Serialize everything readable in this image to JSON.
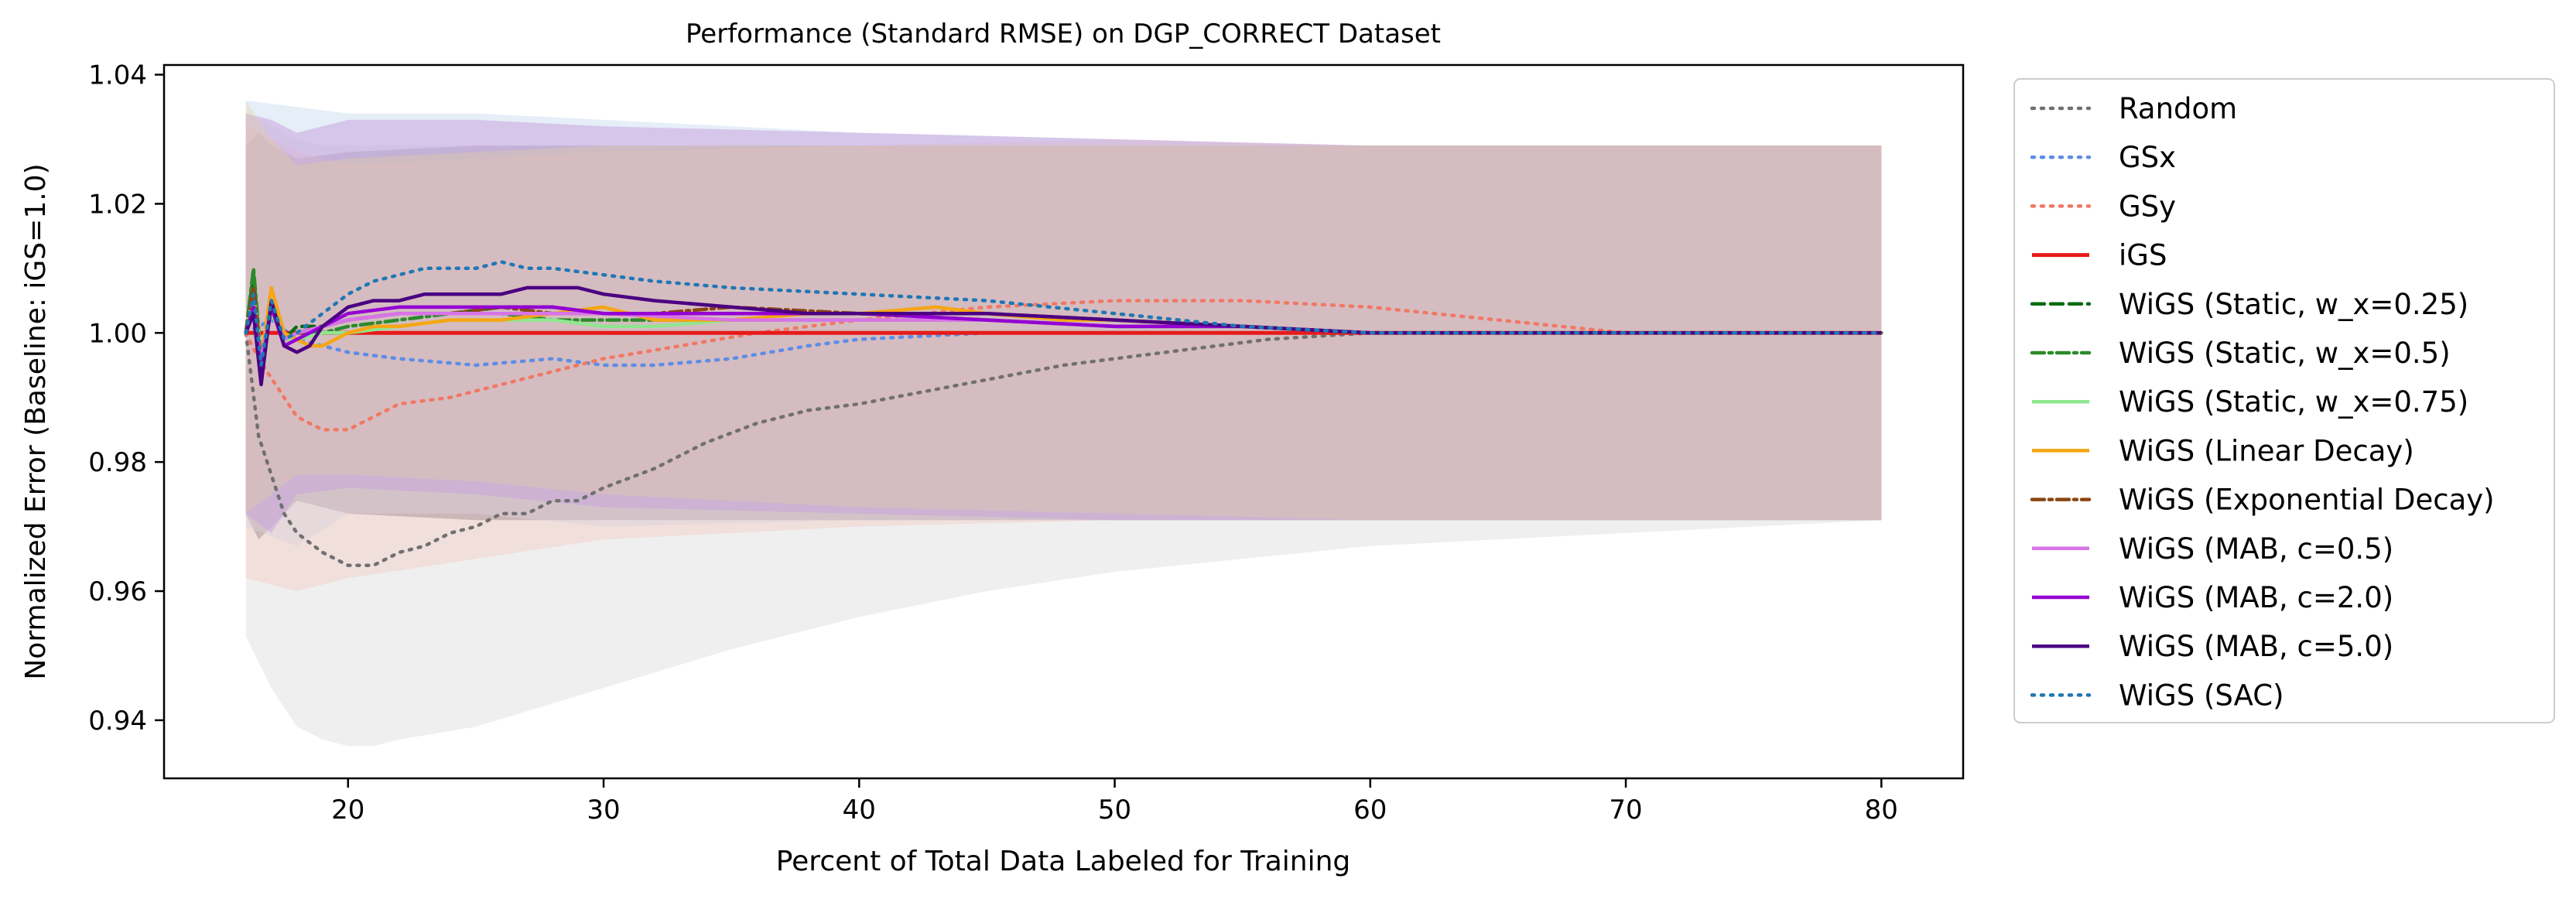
{
  "chart_data": {
    "type": "line",
    "title": "Performance (Standard RMSE) on DGP_CORRECT Dataset",
    "xlabel": "Percent of Total Data Labeled for Training",
    "ylabel": "Normalized Error (Baseline: iGS=1.0)",
    "xlim": [
      12.8,
      83.2
    ],
    "ylim": [
      0.931,
      1.0415
    ],
    "xticks": [
      20,
      30,
      40,
      50,
      60,
      70,
      80
    ],
    "yticks": [
      0.94,
      0.96,
      0.98,
      1.0,
      1.02,
      1.04
    ],
    "xtick_labels": [
      "20",
      "30",
      "40",
      "50",
      "60",
      "70",
      "80"
    ],
    "ytick_labels": [
      "0.94",
      "0.96",
      "0.98",
      "1.00",
      "1.02",
      "1.04"
    ],
    "grid": false,
    "legend_position": "outside-right",
    "bands": [
      {
        "color": "#9a8a9a",
        "opacity": 0.9,
        "x": [
          16,
          16.5,
          17,
          18,
          20,
          25,
          30,
          40,
          50,
          60,
          70,
          80
        ],
        "upper": [
          1.029,
          1.031,
          1.029,
          1.027,
          1.028,
          1.029,
          1.029,
          1.029,
          1.029,
          1.029,
          1.029,
          1.029
        ],
        "lower": [
          0.972,
          0.968,
          0.97,
          0.974,
          0.972,
          0.971,
          0.971,
          0.971,
          0.971,
          0.971,
          0.971,
          0.971
        ]
      },
      {
        "color": "#d0d0d0",
        "opacity": 0.35,
        "x": [
          16,
          17,
          18,
          19,
          20,
          21,
          22,
          25,
          30,
          35,
          40,
          45,
          50,
          55,
          60,
          65,
          70,
          75,
          80
        ],
        "upper": [
          1.034,
          1.032,
          1.03,
          1.029,
          1.029,
          1.029,
          1.029,
          1.029,
          1.029,
          1.029,
          1.029,
          1.029,
          1.029,
          1.029,
          1.029,
          1.029,
          1.029,
          1.029,
          1.029
        ],
        "lower": [
          0.953,
          0.945,
          0.939,
          0.937,
          0.936,
          0.936,
          0.937,
          0.939,
          0.945,
          0.951,
          0.956,
          0.96,
          0.963,
          0.965,
          0.967,
          0.968,
          0.969,
          0.97,
          0.971
        ]
      },
      {
        "color": "#c8daf0",
        "opacity": 0.45,
        "x": [
          16,
          18,
          20,
          25,
          30,
          40,
          50,
          60,
          70,
          80
        ],
        "upper": [
          1.036,
          1.035,
          1.034,
          1.034,
          1.033,
          1.031,
          1.03,
          1.029,
          1.029,
          1.029
        ],
        "lower": [
          0.97,
          0.967,
          0.972,
          0.972,
          0.97,
          0.971,
          0.971,
          0.971,
          0.971,
          0.971
        ]
      },
      {
        "color": "#f5c8c0",
        "opacity": 0.4,
        "x": [
          16,
          18,
          20,
          25,
          30,
          40,
          50,
          60,
          70,
          80
        ],
        "upper": [
          1.032,
          1.028,
          1.026,
          1.027,
          1.028,
          1.029,
          1.03,
          1.029,
          1.029,
          1.029
        ],
        "lower": [
          0.962,
          0.96,
          0.962,
          0.965,
          0.968,
          0.97,
          0.971,
          0.971,
          0.971,
          0.971
        ]
      },
      {
        "color": "#c9a6de",
        "opacity": 0.55,
        "x": [
          16,
          17,
          18,
          20,
          25,
          30,
          40,
          50,
          60,
          70,
          80
        ],
        "upper": [
          1.034,
          1.033,
          1.031,
          1.033,
          1.033,
          1.032,
          1.031,
          1.03,
          1.029,
          1.029,
          1.029
        ],
        "lower": [
          0.972,
          0.969,
          0.975,
          0.976,
          0.975,
          0.973,
          0.972,
          0.971,
          0.971,
          0.971,
          0.971
        ]
      },
      {
        "color": "#e6cf9c",
        "opacity": 0.35,
        "x": [
          16,
          17,
          18,
          20,
          25,
          30,
          40,
          50,
          60,
          70,
          80
        ],
        "upper": [
          1.036,
          1.03,
          1.026,
          1.027,
          1.028,
          1.029,
          1.029,
          1.029,
          1.029,
          1.029,
          1.029
        ],
        "lower": [
          0.972,
          0.975,
          0.978,
          0.978,
          0.977,
          0.975,
          0.973,
          0.972,
          0.971,
          0.971,
          0.971
        ]
      }
    ],
    "series": [
      {
        "name": "Random",
        "color": "#707070",
        "dash": "dotted",
        "x": [
          16,
          16.5,
          17,
          17.5,
          18,
          19,
          20,
          21,
          22,
          23,
          24,
          25,
          26,
          27,
          28,
          29,
          30,
          32,
          34,
          36,
          38,
          40,
          44,
          48,
          52,
          56,
          60,
          65,
          70,
          75,
          80
        ],
        "y": [
          1.0,
          0.984,
          0.978,
          0.972,
          0.969,
          0.966,
          0.964,
          0.964,
          0.966,
          0.967,
          0.969,
          0.97,
          0.972,
          0.972,
          0.974,
          0.974,
          0.976,
          0.979,
          0.983,
          0.986,
          0.988,
          0.989,
          0.992,
          0.995,
          0.997,
          0.999,
          1.0,
          1.0,
          1.0,
          1.0,
          1.0
        ]
      },
      {
        "name": "GSx",
        "color": "#5b8de6",
        "dash": "dotted",
        "x": [
          16,
          17,
          18,
          20,
          22,
          25,
          28,
          30,
          32,
          35,
          38,
          40,
          45,
          50,
          55,
          60,
          70,
          80
        ],
        "y": [
          1.0,
          1.002,
          0.999,
          0.997,
          0.996,
          0.995,
          0.996,
          0.995,
          0.995,
          0.996,
          0.998,
          0.999,
          1.0,
          1.0,
          1.0,
          1.0,
          1.0,
          1.0
        ]
      },
      {
        "name": "GSy",
        "color": "#f07864",
        "dash": "dotted",
        "x": [
          16,
          16.5,
          17,
          17.5,
          18,
          18.5,
          19,
          20,
          21,
          22,
          24,
          26,
          28,
          30,
          33,
          36,
          40,
          45,
          50,
          55,
          60,
          65,
          70,
          75,
          80
        ],
        "y": [
          1.0,
          0.996,
          0.993,
          0.99,
          0.987,
          0.986,
          0.985,
          0.985,
          0.987,
          0.989,
          0.99,
          0.992,
          0.994,
          0.996,
          0.998,
          1.0,
          1.002,
          1.004,
          1.005,
          1.005,
          1.004,
          1.002,
          1.0,
          1.0,
          1.0
        ]
      },
      {
        "name": "iGS",
        "color": "#e61a1a",
        "dash": "solid",
        "width": 5,
        "x": [
          16,
          80
        ],
        "y": [
          1.0,
          1.0
        ]
      },
      {
        "name": "WiGS (Static, w_x=0.25)",
        "color": "#0a6b10",
        "dash": "dashed",
        "x": [
          16,
          16.3,
          16.6,
          17,
          17.5,
          18,
          19,
          20,
          22,
          24,
          26,
          28,
          30,
          32,
          35,
          40,
          45,
          50,
          55,
          60,
          70,
          80
        ],
        "y": [
          1.0,
          1.009,
          0.995,
          1.005,
          0.999,
          1.001,
          1.001,
          1.002,
          1.003,
          1.003,
          1.004,
          1.004,
          1.003,
          1.003,
          1.003,
          1.003,
          1.002,
          1.001,
          1.001,
          1.0,
          1.0,
          1.0
        ]
      },
      {
        "name": "WiGS (Static, w_x=0.5)",
        "color": "#2a8a2a",
        "dash": "dashdot",
        "x": [
          16,
          16.3,
          16.6,
          17,
          17.5,
          18,
          19,
          20,
          22,
          24,
          26,
          28,
          30,
          32,
          35,
          40,
          45,
          50,
          55,
          60,
          70,
          80
        ],
        "y": [
          1.0,
          1.01,
          0.996,
          1.004,
          0.999,
          1.0,
          1.0,
          1.001,
          1.002,
          1.003,
          1.003,
          1.002,
          1.002,
          1.002,
          1.002,
          1.002,
          1.002,
          1.001,
          1.001,
          1.0,
          1.0,
          1.0
        ]
      },
      {
        "name": "WiGS (Static, w_x=0.75)",
        "color": "#90e690",
        "dash": "solid",
        "x": [
          16,
          16.3,
          16.6,
          17,
          17.5,
          18,
          19,
          20,
          22,
          24,
          26,
          28,
          30,
          32,
          35,
          40,
          45,
          50,
          55,
          60,
          70,
          80
        ],
        "y": [
          1.0,
          1.006,
          0.997,
          1.003,
          0.999,
          0.999,
          1.0,
          1.0,
          1.001,
          1.002,
          1.002,
          1.002,
          1.001,
          1.001,
          1.002,
          1.002,
          1.002,
          1.001,
          1.001,
          1.0,
          1.0,
          1.0
        ]
      },
      {
        "name": "WiGS (Linear Decay)",
        "color": "#f5a614",
        "dash": "solid",
        "x": [
          16,
          16.3,
          16.6,
          17,
          17.5,
          18,
          18.5,
          19,
          20,
          21,
          22,
          24,
          26,
          28,
          30,
          32,
          35,
          38,
          40,
          43,
          45,
          48,
          50,
          55,
          60,
          70,
          80
        ],
        "y": [
          1.0,
          1.003,
          0.996,
          1.007,
          1.0,
          0.999,
          0.998,
          0.998,
          1.0,
          1.001,
          1.001,
          1.002,
          1.002,
          1.003,
          1.004,
          1.002,
          1.002,
          1.003,
          1.003,
          1.004,
          1.003,
          1.002,
          1.002,
          1.001,
          1.0,
          1.0,
          1.0
        ]
      },
      {
        "name": "WiGS (Exponential Decay)",
        "color": "#8b4513",
        "dash": "dashdot",
        "x": [
          16,
          16.3,
          16.6,
          17,
          17.5,
          18,
          19,
          20,
          22,
          24,
          26,
          28,
          30,
          32,
          35,
          40,
          45,
          50,
          55,
          60,
          70,
          80
        ],
        "y": [
          1.0,
          1.007,
          0.996,
          1.004,
          0.999,
          1.0,
          1.001,
          1.002,
          1.003,
          1.003,
          1.004,
          1.003,
          1.003,
          1.003,
          1.004,
          1.003,
          1.003,
          1.002,
          1.001,
          1.0,
          1.0,
          1.0
        ]
      },
      {
        "name": "WiGS (MAB, c=0.5)",
        "color": "#d873e8",
        "dash": "solid",
        "x": [
          16,
          16.3,
          16.6,
          17,
          17.5,
          18,
          19,
          20,
          22,
          24,
          26,
          28,
          30,
          35,
          40,
          45,
          50,
          55,
          60,
          70,
          80
        ],
        "y": [
          1.0,
          1.003,
          0.996,
          1.004,
          0.999,
          1.0,
          1.001,
          1.002,
          1.003,
          1.003,
          1.003,
          1.003,
          1.003,
          1.002,
          1.002,
          1.002,
          1.001,
          1.001,
          1.0,
          1.0,
          1.0
        ]
      },
      {
        "name": "WiGS (MAB, c=2.0)",
        "color": "#9400d3",
        "dash": "solid",
        "x": [
          16,
          16.3,
          16.6,
          17,
          17.5,
          18,
          19,
          20,
          22,
          24,
          26,
          28,
          30,
          35,
          40,
          45,
          50,
          55,
          60,
          70,
          80
        ],
        "y": [
          1.0,
          1.004,
          0.994,
          1.004,
          0.998,
          0.999,
          1.001,
          1.003,
          1.004,
          1.004,
          1.004,
          1.004,
          1.003,
          1.003,
          1.003,
          1.002,
          1.001,
          1.001,
          1.0,
          1.0,
          1.0
        ]
      },
      {
        "name": "WiGS (MAB, c=5.0)",
        "color": "#4b0082",
        "dash": "solid",
        "x": [
          16,
          16.3,
          16.6,
          17,
          17.5,
          18,
          18.5,
          19,
          20,
          21,
          22,
          23,
          24,
          25,
          26,
          27,
          28,
          29,
          30,
          32,
          35,
          38,
          40,
          45,
          50,
          55,
          60,
          65,
          70,
          80
        ],
        "y": [
          1.0,
          1.003,
          0.992,
          1.005,
          0.998,
          0.997,
          0.998,
          1.001,
          1.004,
          1.005,
          1.005,
          1.006,
          1.006,
          1.006,
          1.006,
          1.007,
          1.007,
          1.007,
          1.006,
          1.005,
          1.004,
          1.003,
          1.003,
          1.003,
          1.002,
          1.001,
          1.0,
          1.0,
          1.0,
          1.0
        ]
      },
      {
        "name": "WiGS (SAC)",
        "color": "#1f77b4",
        "dash": "dotted",
        "x": [
          16,
          16.3,
          16.6,
          17,
          17.5,
          18,
          19,
          20,
          21,
          22,
          23,
          24,
          25,
          26,
          27,
          28,
          30,
          32,
          35,
          40,
          45,
          50,
          55,
          60,
          65,
          70,
          80
        ],
        "y": [
          1.0,
          1.006,
          0.995,
          1.005,
          0.999,
          1.0,
          1.003,
          1.006,
          1.008,
          1.009,
          1.01,
          1.01,
          1.01,
          1.011,
          1.01,
          1.01,
          1.009,
          1.008,
          1.007,
          1.006,
          1.005,
          1.003,
          1.001,
          1.0,
          1.0,
          1.0,
          1.0
        ]
      }
    ]
  }
}
